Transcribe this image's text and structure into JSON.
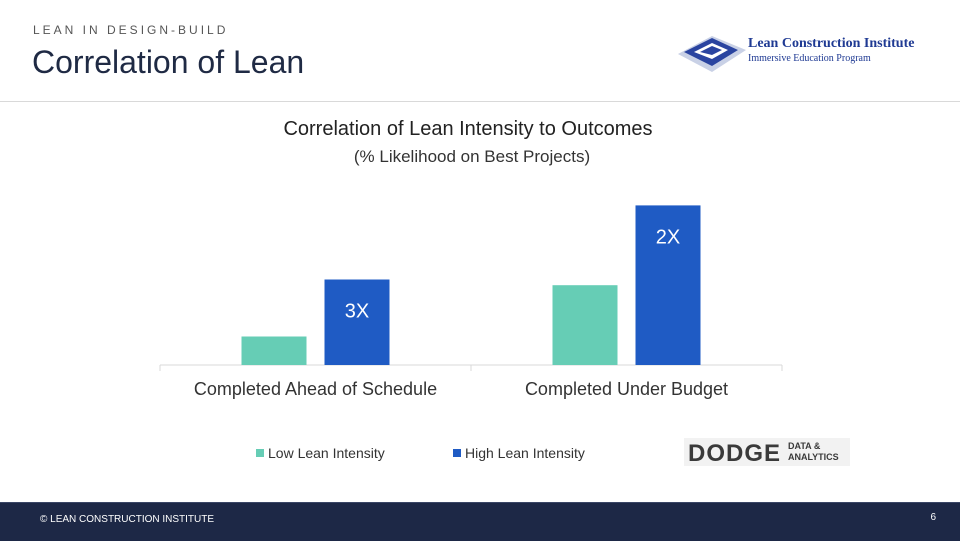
{
  "header": {
    "section_label": "LEAN IN DESIGN-BUILD",
    "title": "Correlation of Lean"
  },
  "logo": {
    "name": "Lean Construction Institute",
    "subtitle": "Immersive Education Program"
  },
  "chart_data": {
    "type": "bar",
    "title": "Correlation of Lean Intensity to Outcomes",
    "subtitle": "(% Likelihood on Best Projects)",
    "categories": [
      "Completed Ahead of Schedule",
      "Completed Under Budget"
    ],
    "series": [
      {
        "name": "Low Lean Intensity",
        "values": [
          1,
          2.8
        ],
        "color": "#66cdb5"
      },
      {
        "name": "High Lean Intensity",
        "values": [
          3,
          5.6
        ],
        "color": "#1f5bc4"
      }
    ],
    "data_labels": [
      "3X",
      "2X"
    ],
    "ylim": [
      0,
      6
    ],
    "grid": false,
    "legend": "bottom"
  },
  "source": {
    "name": "DODGE",
    "tagline": "DATA &\nANALYTICS"
  },
  "footer": {
    "copyright": "© LEAN CONSTRUCTION INSTITUTE",
    "page": "6"
  }
}
